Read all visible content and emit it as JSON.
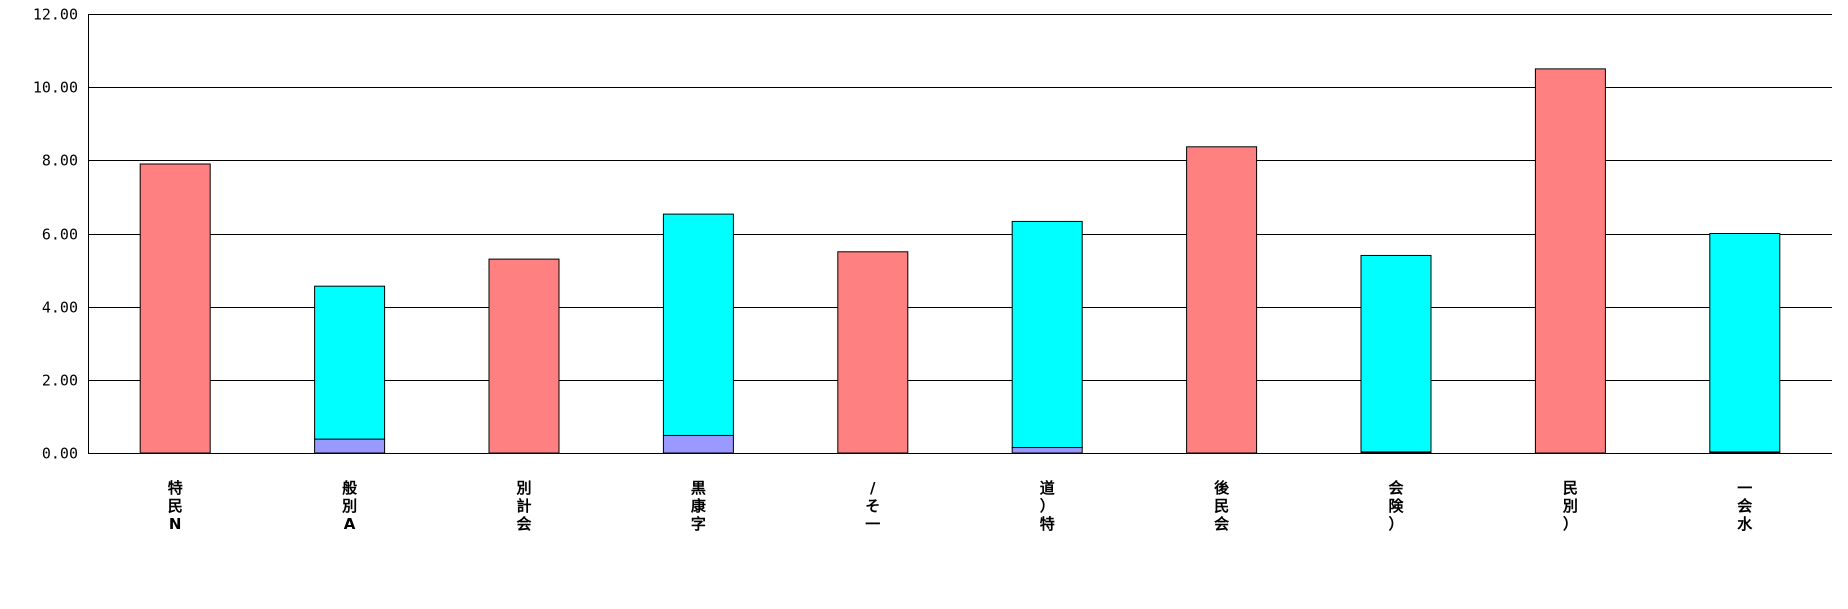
{
  "chart_data": {
    "type": "bar",
    "stacked": true,
    "categories": [
      "特民N",
      "般別A",
      "別計会",
      "黒康字",
      "/そ一",
      "道）特",
      "後民会",
      "会険）",
      "民別）",
      "一会水"
    ],
    "series": [
      {
        "values": [
          0,
          0.38,
          0,
          0.48,
          0,
          0.15,
          0,
          0.03,
          0,
          0.03
        ],
        "color": "#9999ff"
      },
      {
        "values": [
          0,
          4.18,
          0,
          6.05,
          0,
          6.18,
          0,
          5.37,
          0,
          5.97
        ],
        "color": "#00ffff"
      },
      {
        "values": [
          7.9,
          0,
          5.3,
          0,
          5.5,
          0,
          8.37,
          0,
          10.5,
          0
        ],
        "color": "#ff8080"
      }
    ],
    "ylim": [
      0,
      12
    ],
    "yticks": [
      "0.00",
      "2.00",
      "4.00",
      "6.00",
      "8.00",
      "10.00",
      "12.00"
    ],
    "grid": true,
    "xlabel": "",
    "ylabel": "",
    "title": ""
  }
}
